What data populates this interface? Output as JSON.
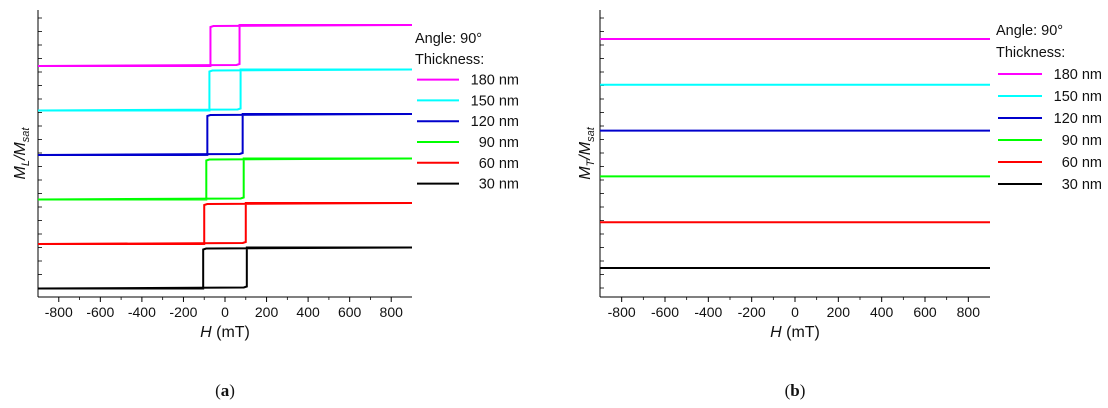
{
  "chart_data": [
    {
      "type": "line",
      "panel_label": "a",
      "xlabel_symbol": "H",
      "xlabel_unit": " (mT)",
      "ylabel_main": "M",
      "ylabel_sub": "L",
      "ylabel_slash": "/M",
      "ylabel_sub2": "sat",
      "xlim": [
        -900,
        900
      ],
      "xticks": [
        "-800",
        "-600",
        "-400",
        "-200",
        "0",
        "200",
        "400",
        "600",
        "800"
      ],
      "xtick_values": [
        -800,
        -600,
        -400,
        -200,
        0,
        200,
        400,
        600,
        800
      ],
      "legend_header": [
        "Angle: 90°",
        "Thickness:"
      ],
      "loop_shape": "square hysteresis",
      "series": [
        {
          "name": "180 nm",
          "color": "#ff00ff",
          "coercive_field_left": -70,
          "coercive_field_right": 70
        },
        {
          "name": "150 nm",
          "color": "#00ffff",
          "coercive_field_left": -75,
          "coercive_field_right": 75
        },
        {
          "name": "120 nm",
          "color": "#0000cc",
          "coercive_field_left": -85,
          "coercive_field_right": 85
        },
        {
          "name": "90 nm",
          "color": "#00ff00",
          "coercive_field_left": -90,
          "coercive_field_right": 90
        },
        {
          "name": "60 nm",
          "color": "#ff0000",
          "coercive_field_left": -100,
          "coercive_field_right": 100
        },
        {
          "name": "30 nm",
          "color": "#000000",
          "coercive_field_left": -105,
          "coercive_field_right": 105
        }
      ]
    },
    {
      "type": "line",
      "panel_label": "b",
      "xlabel_symbol": "H",
      "xlabel_unit": " (mT)",
      "ylabel_main": "M",
      "ylabel_sub": "T",
      "ylabel_slash": "/M",
      "ylabel_sub2": "sat",
      "xlim": [
        -900,
        900
      ],
      "xticks": [
        "-800",
        "-600",
        "-400",
        "-200",
        "0",
        "200",
        "400",
        "600",
        "800"
      ],
      "xtick_values": [
        -800,
        -600,
        -400,
        -200,
        0,
        200,
        400,
        600,
        800
      ],
      "legend_header": [
        "Angle: 90°",
        "Thickness:"
      ],
      "loop_shape": "flat",
      "series": [
        {
          "name": "180 nm",
          "color": "#ff00ff"
        },
        {
          "name": "150 nm",
          "color": "#00ffff"
        },
        {
          "name": "120 nm",
          "color": "#0000cc"
        },
        {
          "name": "90 nm",
          "color": "#00ff00"
        },
        {
          "name": "60 nm",
          "color": "#ff0000"
        },
        {
          "name": "30 nm",
          "color": "#000000"
        }
      ]
    }
  ]
}
